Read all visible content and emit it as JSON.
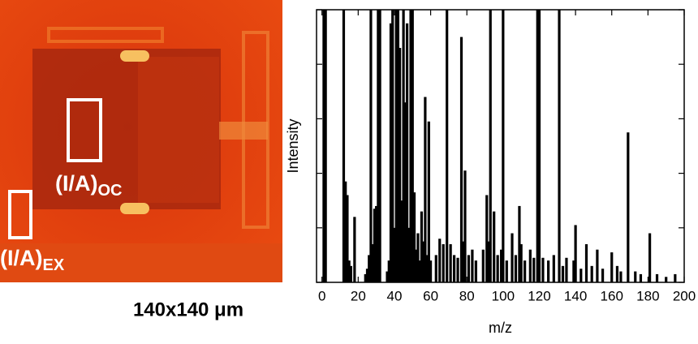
{
  "image": {
    "labels": [
      {
        "main": "(I/A)",
        "sub": "OC"
      },
      {
        "main": "(I/A)",
        "sub": "EX"
      }
    ],
    "caption": "140x140 μm"
  },
  "chart_data": {
    "type": "bar",
    "xlabel": "m/z",
    "ylabel": "Intensity",
    "color": "#000000",
    "x": [
      1,
      2,
      12,
      13,
      14,
      15,
      16,
      18,
      24,
      25,
      26,
      27,
      28,
      29,
      30,
      31,
      32,
      36,
      37,
      38,
      39,
      40,
      41,
      42,
      43,
      44,
      45,
      46,
      47,
      48,
      49,
      50,
      51,
      52,
      53,
      54,
      55,
      56,
      57,
      58,
      59,
      60,
      63,
      65,
      67,
      69,
      71,
      73,
      75,
      77,
      78,
      79,
      81,
      83,
      85,
      89,
      91,
      92,
      93,
      95,
      97,
      99,
      100,
      102,
      105,
      107,
      109,
      110,
      112,
      115,
      117,
      119,
      120,
      122,
      125,
      128,
      131,
      133,
      135,
      139,
      140,
      143,
      146,
      149,
      152,
      155,
      160,
      163,
      165,
      169,
      173,
      176,
      181,
      185,
      190,
      195
    ],
    "values": [
      100,
      100,
      100,
      37,
      32,
      8,
      6,
      24,
      3,
      5,
      10,
      100,
      14,
      27,
      28,
      100,
      100,
      4,
      8,
      95,
      100,
      20,
      100,
      100,
      86,
      30,
      100,
      66,
      95,
      20,
      100,
      100,
      33,
      12,
      18,
      8,
      26,
      15,
      68,
      10,
      59,
      8,
      10,
      16,
      14,
      100,
      14,
      10,
      9,
      90,
      15,
      41,
      10,
      12,
      8,
      12,
      32,
      15,
      100,
      26,
      10,
      12,
      100,
      8,
      18,
      10,
      28,
      14,
      8,
      12,
      9,
      100,
      100,
      9,
      8,
      10,
      100,
      6,
      9,
      8,
      21,
      5,
      14,
      6,
      12,
      5,
      11,
      6,
      4,
      55,
      4,
      3,
      18,
      3,
      2,
      3
    ],
    "xlim": [
      -3,
      200
    ],
    "xticks": [
      0,
      20,
      40,
      60,
      80,
      100,
      120,
      140,
      160,
      180,
      200
    ],
    "ylim": [
      0,
      100
    ],
    "yticks": [
      0,
      20,
      40,
      60,
      80,
      100
    ]
  }
}
